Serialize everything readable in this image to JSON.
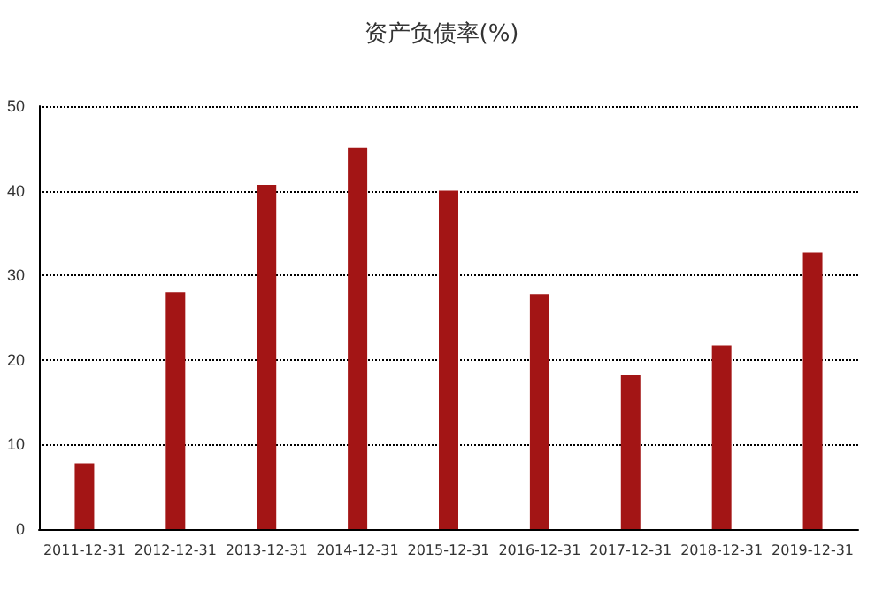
{
  "chart_data": {
    "type": "bar",
    "title": "资产负债率(%)",
    "categories": [
      "2011-12-31",
      "2012-12-31",
      "2013-12-31",
      "2014-12-31",
      "2015-12-31",
      "2016-12-31",
      "2017-12-31",
      "2018-12-31",
      "2019-12-31"
    ],
    "values": [
      7.8,
      28,
      40.7,
      45.1,
      40,
      27.8,
      18.2,
      21.7,
      32.7
    ],
    "color": "#a31515",
    "ylim": [
      0,
      50
    ],
    "yticks": [
      0,
      10,
      20,
      30,
      40,
      50
    ],
    "grid": "y",
    "line_style": "dotted"
  }
}
